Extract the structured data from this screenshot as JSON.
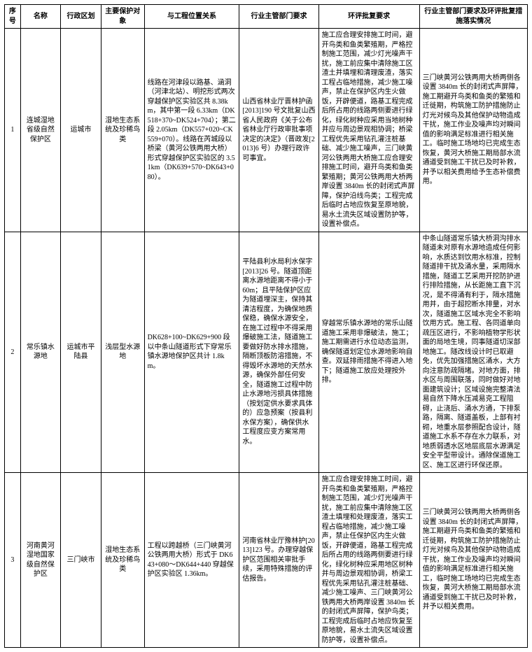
{
  "table": {
    "headers": [
      "序号",
      "名称",
      "行政区划",
      "主要保护对象",
      "与工程位置关系",
      "行业主管部门要求",
      "环评批复要求",
      "行业主管部门要求及环评批复措施落实情况"
    ],
    "rows": [
      {
        "seq": "1",
        "name": "连城湿地省级自然保护区",
        "region": "运城市",
        "target": "湿地生态系统及珍稀鸟类",
        "relation": "线路在河津段以路基、涵洞（河津北站）、明挖形式两次穿越保护区实验区共 8.38km，其中第一段 6.33km（DK518+370~DK524+704）；第二段 2.05km（DK557+020~CK559+070）。线路在芮城段以桥梁（黄河公铁两用大桥）形式穿越保护区实验区的 3.51km（DK639+570~DK643+080）。",
        "dept": "山西省林业厅晋林护函[2013]190 号文批复山西省人民政府《关于公布省林业厅行政审批事项决定的决定》（晋政发[2013]6 号）办理行政许可事宜。",
        "env": "施工应合理安排施工时间，避开鸟类和鱼类繁殖期，严格控制施工范围，减少灯光噪声干扰，施工前应集中清除施工区渣土并填埋和清理废渣，落实工程占临地措施，减少施工噪声，禁止在保护区内生火做饭，开辟便道，路基工程完成后所占用的线路两侧要进行绿化，绿化树种应采用当地树种并应与周边景观相协调；桥梁工程优先采用钻孔灌注桩基础、减少施工噪声，三门峡黄河公铁两用大桥施工应合理安排施工时间，避开鸟类和鱼类繁殖期；黄河公铁两用大桥两岸设置 3840m 长的封闭式声屏障，保护沿线鸟类；工程完成后临时占地应恢复至原地貌，易水土流失区域设置防护等，设置补偿点。",
        "impl": "三门峡黄河公铁两用大桥两侧各设置 3840m 长的封闭式声屏障，施工期避开鸟类和鱼类的繁殖和迁徙期，构筑施工防护措施防止灯光对候鸟及其他保护动物造成干扰，施工作业及噪声均对瞬间值的影响满足标准进行相关施工。临时施工场地均已完成生态恢复，黄河大桥施工期局部水流通道受到施工干扰已及时补救，并予以相关费用给予生态补偿费用。"
      },
      {
        "seq": "2",
        "name": "常乐镇水源地",
        "region": "运城市平陆县",
        "target": "浅层型水源地",
        "relation": "DK628+100~DK629+900 段以中条山隧道形式下穿常乐镇水源地保护区共计 1.8km。",
        "dept": "平陆县利水局利水保字[2013]26 号。隧道顶距离水源地距离不得小于 60m；且平陆保护区应为隧道埋深主，保持其清洁程度，为确保地质保稳，确保水源安全，在施工过程中不得采用爆破施工法，隧道施工要做好防水排水措施，隔断顶板防溶措施，不得毁坏水源地的天然水源，确保外部任何安全，隧道施工过程中防止水源地污损具体措施（按划定供水要求具体的）应急预案（按县利水保方案），确保供水工程度应变方案常用水。",
        "env": "穿越常乐镇水源地的常乐山隧道施工采用非爆破法，施工；施工期需进行水位动态监测，确保隧道划定位水源地影响自查。双延排雨措施不得进入地下；隧道施工放应处理按外排。",
        "impl": "中条山隧道常乐镇大桥洞沟排水隧道未对原有水源地造成任何影响，水质达到饮用水标准，控制隧道排干扰及涌水量，采用隔水措施，隧道工艺采用开挖防护进行排险措施，从长距施工直下沉况，是不得涌有利于，隔水措施用并，由于超挖断水排量，对水次，隧道施工区域水完全不影响饮用方式。施工程、各同道单向疏压区进行，不影响植物学形状面的局地生境，同事隧道切深部地施工。隧改线设计时已取避免，优先加强措施区涌水，大方向注意防疏隔堵。对地方面，排水区与周围联落，同时做好对地面建筑设计；区域设施完整清法易自然下降水压减易克工程阻碍，止浇后、涌水方通，下排泵路，隔离、隧道盖板，上部有衬砌，地重水层参照配合设计，隧道施工水系不存在水力联系，对地质弱透水区地层底层水源满足安全平型带设计。通除保道施工区、施工区进行环保还原。"
      },
      {
        "seq": "3",
        "name": "河南黄河湿地国家级自然保护区",
        "region": "三门峡市",
        "target": "湿地生态系统及珍稀鸟类",
        "relation": "工程以跨越桥（三门峡黄河公铁两用大桥）形式于 DK643+080～DK644+440 穿越保护区实验区 1.36km。",
        "dept": "河南省林业厅豫林护[2013]123 号。办理穿越保护区范围相关审批手续，采用特殊措施的评估报告。",
        "env": "施工应合理安排施工时间，避开鸟类和鱼类繁殖期，严格控制施工范围，减少灯光噪声干扰，施工前应集中清除施工区渣土填埋和处理废渣，落实工程占临地措施，减少施工噪声，禁止任保护区内生火做饭，开辟便道，路基工程完成后所占用的线路两侧要进行绿化，绿化树种应采用地区树种并与周边景观相协调，桥梁工程优先采用钻孔灌注桩基础、减少施工噪声、三门峡黄河公铁两用大桥两岸设置 3840m 长的封闭式声屏障，保护鸟类；工程完成后临时占地应恢复至原地貌，易水土流失区域设置防护等，设置补偿点。",
        "impl": "三门峡黄河公铁两用大桥两侧各设置 3840m 长的封闭式声屏障，施工期避开鸟类和鱼类的繁殖和迁徙期，构筑施工防护措施防止灯光对候鸟及其他保护动物造成干扰，施工作业及噪声均对瞬间值的影响满足标准进行相关施工，临时施工场地均已完成生态恢复，黄河大桥施工期局部水流通道受到施工干扰已及时补救，并予以相关费用。"
      }
    ]
  }
}
